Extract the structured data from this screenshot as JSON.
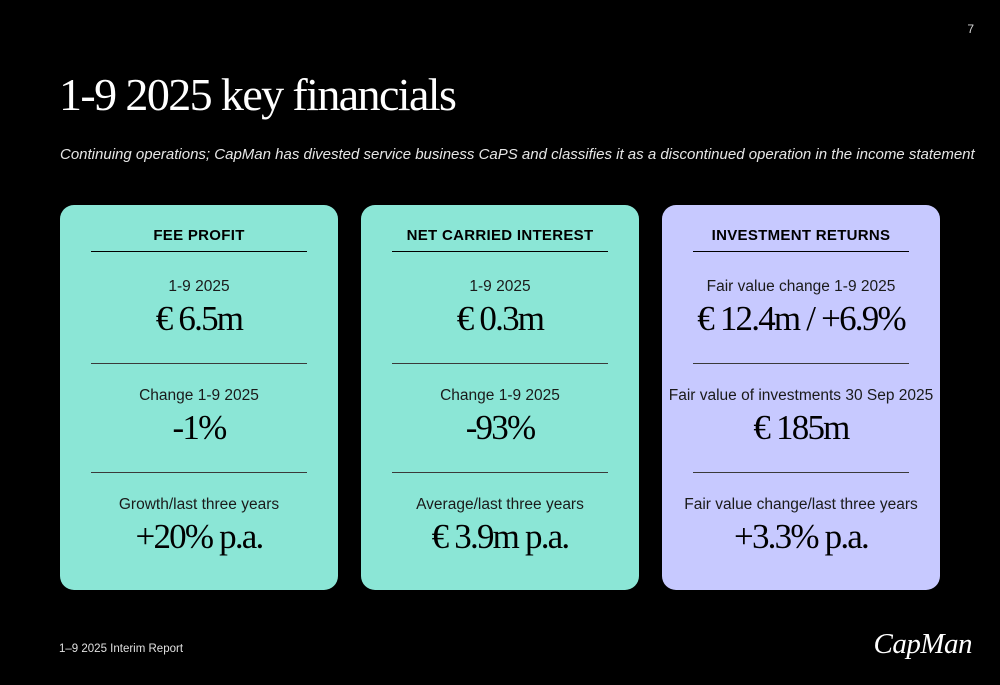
{
  "page_number": "7",
  "title": "1-9 2025 key financials",
  "subtitle": "Continuing operations; CapMan has divested service business CaPS and classifies it as a discontinued operation in the income statement",
  "colors": {
    "background": "#000000",
    "card_teal": "#8be6d6",
    "card_lavender": "#c7c9ff"
  },
  "cards": [
    {
      "header": "FEE PROFIT",
      "metrics": [
        {
          "label": "1-9 2025",
          "value": "€ 6.5m"
        },
        {
          "label": "Change 1-9 2025",
          "value": "-1%"
        },
        {
          "label": "Growth/last three years",
          "value": "+20% p.a."
        }
      ]
    },
    {
      "header": "NET CARRIED INTEREST",
      "metrics": [
        {
          "label": "1-9 2025",
          "value": "€ 0.3m"
        },
        {
          "label": "Change 1-9 2025",
          "value": "-93%"
        },
        {
          "label": "Average/last three years",
          "value": "€ 3.9m p.a."
        }
      ]
    },
    {
      "header": "INVESTMENT RETURNS",
      "metrics": [
        {
          "label": "Fair value change 1-9 2025",
          "value": "€ 12.4m / +6.9%"
        },
        {
          "label": "Fair value of investments 30 Sep 2025",
          "value": "€ 185m"
        },
        {
          "label": "Fair value change/last three years",
          "value": "+3.3% p.a."
        }
      ]
    }
  ],
  "footer": {
    "report_name": "1–9 2025 Interim Report",
    "logo_text": "CapMan"
  }
}
